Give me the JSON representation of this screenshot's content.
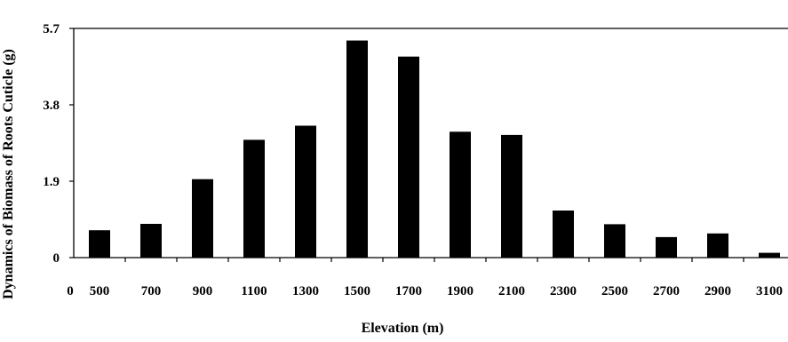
{
  "chart_data": {
    "type": "bar",
    "categories": [
      "500",
      "700",
      "900",
      "1100",
      "1300",
      "1500",
      "1700",
      "1900",
      "2100",
      "2300",
      "2500",
      "2700",
      "2900",
      "3100"
    ],
    "values": [
      0.68,
      0.84,
      1.95,
      2.93,
      3.28,
      5.4,
      5.0,
      3.13,
      3.05,
      1.17,
      0.83,
      0.51,
      0.6,
      0.12
    ],
    "x_origin_label": "0",
    "yticks": [
      "0",
      "1.9",
      "3.8",
      "5.7"
    ],
    "ylim": [
      0,
      5.7
    ],
    "xlabel": "Elevation (m)",
    "ylabel": "Dynamics of Biomass of Roots Cuticle (g)",
    "bar_color": "#000000",
    "grid": false
  }
}
